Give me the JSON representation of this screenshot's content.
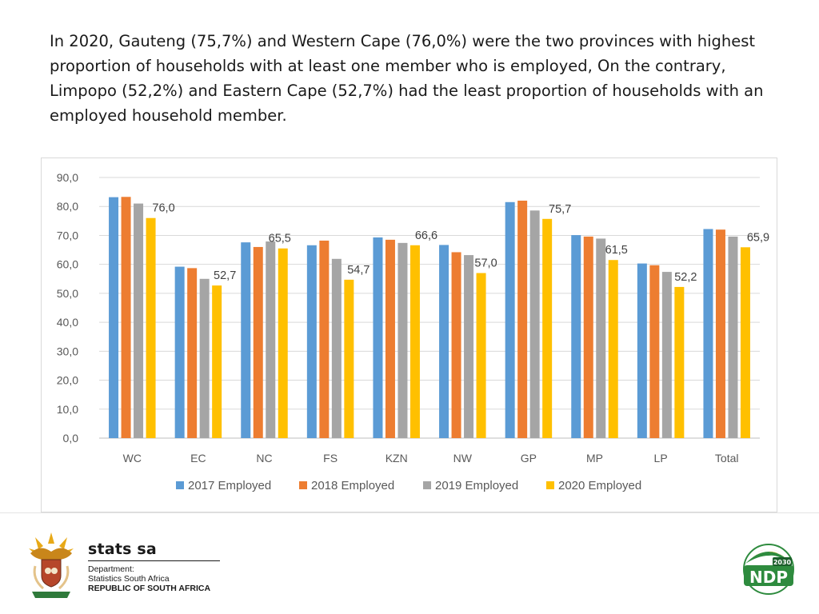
{
  "intro": {
    "text": "In 2020, Gauteng (75,7%) and Western Cape (76,0%) were the two provinces with highest proportion of households with at least one member who is employed, On the contrary, Limpopo (52,2%) and Eastern Cape (52,7%) had the least proportion of households with an employed household member."
  },
  "chart_data": {
    "type": "bar",
    "title": "",
    "xlabel": "",
    "ylabel": "",
    "ylim": [
      0,
      90
    ],
    "ytick_step": 10,
    "ytick_labels": [
      "0,0",
      "10,0",
      "20,0",
      "30,0",
      "40,0",
      "50,0",
      "60,0",
      "70,0",
      "80,0",
      "90,0"
    ],
    "grid": true,
    "legend_position": "bottom",
    "categories": [
      "WC",
      "EC",
      "NC",
      "FS",
      "KZN",
      "NW",
      "GP",
      "MP",
      "LP",
      "Total"
    ],
    "series": [
      {
        "name": "2017 Employed",
        "color": "#5B9BD5",
        "values": [
          83.2,
          59.2,
          67.6,
          66.6,
          69.3,
          66.7,
          81.5,
          70.1,
          60.3,
          72.2
        ]
      },
      {
        "name": "2018 Employed",
        "color": "#ED7D31",
        "values": [
          83.3,
          58.7,
          66.0,
          68.2,
          68.5,
          64.2,
          82.0,
          69.6,
          59.7,
          72.0
        ]
      },
      {
        "name": "2019 Employed",
        "color": "#A5A5A5",
        "values": [
          81.0,
          55.0,
          67.9,
          61.9,
          67.4,
          63.2,
          78.6,
          68.9,
          57.4,
          69.6
        ]
      },
      {
        "name": "2020 Employed",
        "color": "#FFC000",
        "values": [
          76.0,
          52.7,
          65.5,
          54.7,
          66.6,
          57.0,
          75.7,
          61.5,
          52.2,
          65.9
        ]
      }
    ],
    "data_labels": {
      "series": "2020 Employed",
      "labels": [
        "76,0",
        "52,7",
        "65,5",
        "54,7",
        "66,6",
        "57,0",
        "75,7",
        "61,5",
        "52,2",
        "65,9"
      ]
    }
  },
  "footer": {
    "brand_name": "stats sa",
    "department_label": "Department:",
    "department_name": "Statistics South Africa",
    "country": "REPUBLIC OF SOUTH AFRICA",
    "ndp_text": "NDP",
    "ndp_year": "2030"
  }
}
